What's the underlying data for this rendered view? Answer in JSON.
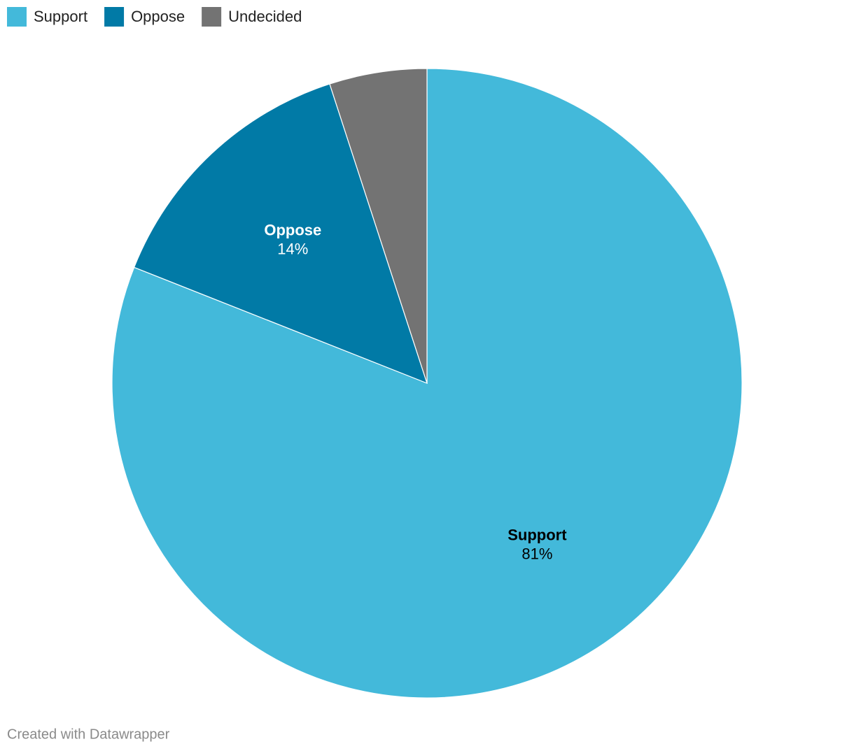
{
  "chart_data": {
    "type": "pie",
    "categories": [
      "Support",
      "Oppose",
      "Undecided"
    ],
    "values": [
      81,
      14,
      5
    ],
    "value_labels": [
      "81%",
      "14%",
      null
    ],
    "colors": [
      "#43b9da",
      "#017aa6",
      "#737373"
    ],
    "legend": "top-left",
    "credit": "Created with Datawrapper"
  }
}
